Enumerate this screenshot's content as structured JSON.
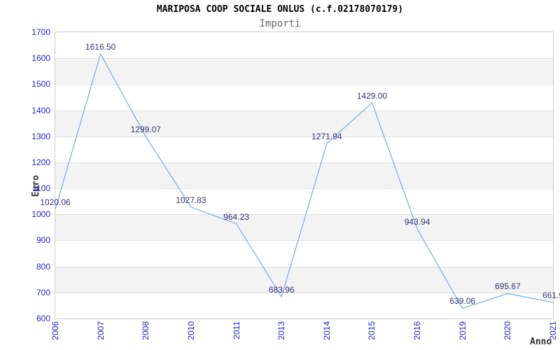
{
  "header": {
    "title": "MARIPOSA COOP SOCIALE ONLUS (c.f.02178070179)",
    "subtitle": "Importi"
  },
  "chart_data": {
    "type": "line",
    "title": "MARIPOSA COOP SOCIALE ONLUS (c.f.02178070179)",
    "subtitle": "Importi",
    "xlabel": "Anno",
    "ylabel": "Euro",
    "ylim": [
      600,
      1700
    ],
    "y_ticks": [
      1700,
      1600,
      1500,
      1400,
      1300,
      1200,
      1100,
      1000,
      900,
      800,
      700,
      600
    ],
    "grid": "horizontal gridlines every 100 with alternating gray bands",
    "legend": "none",
    "series": [
      {
        "name": "Importi",
        "points": [
          {
            "x": "2006",
            "y": 1020.06,
            "label": "1020.06"
          },
          {
            "x": "2007",
            "y": 1616.5,
            "label": "1616.50"
          },
          {
            "x": "2008",
            "y": 1299.07,
            "label": "1299.07"
          },
          {
            "x": "2010",
            "y": 1027.83,
            "label": "1027.83"
          },
          {
            "x": "2011",
            "y": 964.23,
            "label": "964.23"
          },
          {
            "x": "2013",
            "y": 683.96,
            "label": "683.96"
          },
          {
            "x": "2014",
            "y": 1271.94,
            "label": "1271.94"
          },
          {
            "x": "2015",
            "y": 1429.0,
            "label": "1429.00"
          },
          {
            "x": "2016",
            "y": 943.94,
            "label": "943.94"
          },
          {
            "x": "2019",
            "y": 639.06,
            "label": "639.06"
          },
          {
            "x": "2020",
            "y": 695.67,
            "label": "695.67"
          },
          {
            "x": "2021",
            "y": 661.9,
            "label": "661.9"
          }
        ]
      }
    ],
    "colors": {
      "line": "#79aade",
      "axis_tick_labels": "#2222cc",
      "data_labels": "#333377",
      "band": "#f3f3f3",
      "gridline": "#e0e0e0",
      "plot_border": "#cccccc",
      "title": "#000000",
      "subtitle": "#666666",
      "axis_titles": "#333333",
      "background": "#ffffff"
    }
  }
}
